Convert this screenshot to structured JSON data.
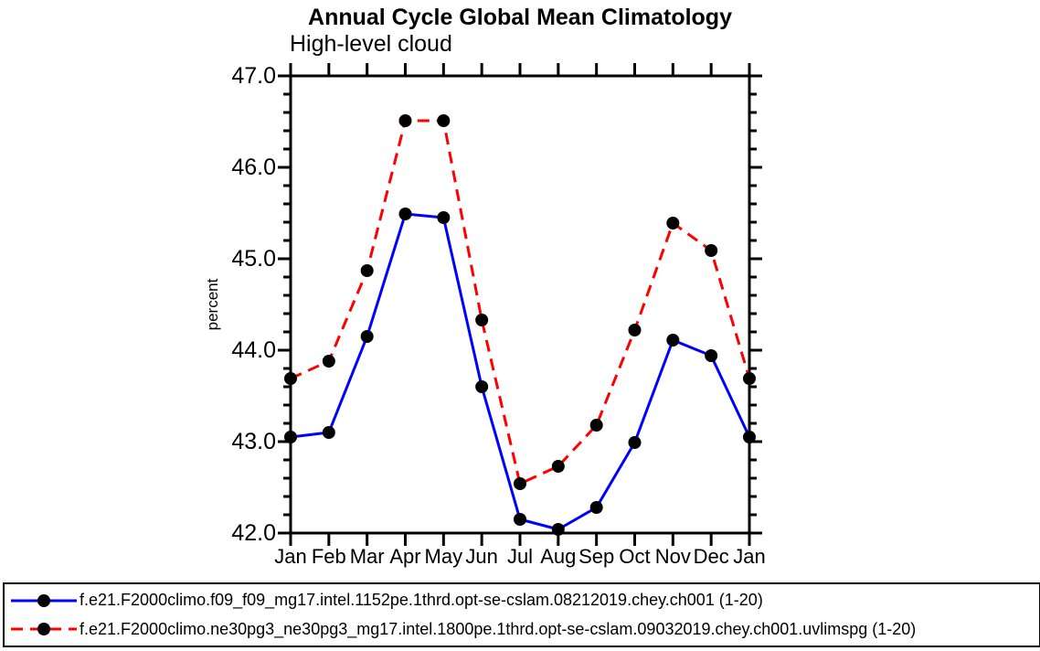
{
  "chart_data": {
    "type": "line",
    "title": "Annual Cycle Global Mean Climatology",
    "subtitle": "High-level cloud",
    "ylabel": "percent",
    "xlabel": "",
    "x_tick_labels": [
      "Jan",
      "Feb",
      "Mar",
      "Apr",
      "May",
      "Jun",
      "Jul",
      "Aug",
      "Sep",
      "Oct",
      "Nov",
      "Dec",
      "Jan"
    ],
    "ylim": [
      42.0,
      47.0
    ],
    "y_tick_labels": [
      "42.0",
      "43.0",
      "44.0",
      "45.0",
      "46.0",
      "47.0"
    ],
    "y_major_tick_step": 1.0,
    "y_minor_tick_step": 0.2,
    "grid": false,
    "legend_position": "bottom-box",
    "colors": {
      "axis": "#000000",
      "background": "#ffffff",
      "marker": "#000000",
      "series_blue": "#0000ff",
      "series_red": "#ff0000"
    },
    "series": [
      {
        "name": "f.e21.F2000climo.f09_f09_mg17.intel.1152pe.1thrd.opt-se-cslam.08212019.chey.ch001 (1-20)",
        "color": "#0000ff",
        "line_style": "solid",
        "marker": "circle",
        "marker_color": "#000000",
        "values": [
          43.05,
          43.1,
          44.15,
          45.49,
          45.45,
          43.6,
          42.15,
          42.04,
          42.28,
          42.99,
          44.11,
          43.94,
          43.05
        ]
      },
      {
        "name": "f.e21.F2000climo.ne30pg3_ne30pg3_mg17.intel.1800pe.1thrd.opt-se-cslam.09032019.chey.ch001.uvlimspg (1-20)",
        "color": "#ff0000",
        "line_style": "dashed",
        "marker": "circle",
        "marker_color": "#000000",
        "values": [
          43.69,
          43.88,
          44.87,
          46.51,
          46.51,
          44.33,
          42.54,
          42.73,
          43.18,
          44.22,
          45.39,
          45.09,
          43.69
        ]
      }
    ]
  }
}
